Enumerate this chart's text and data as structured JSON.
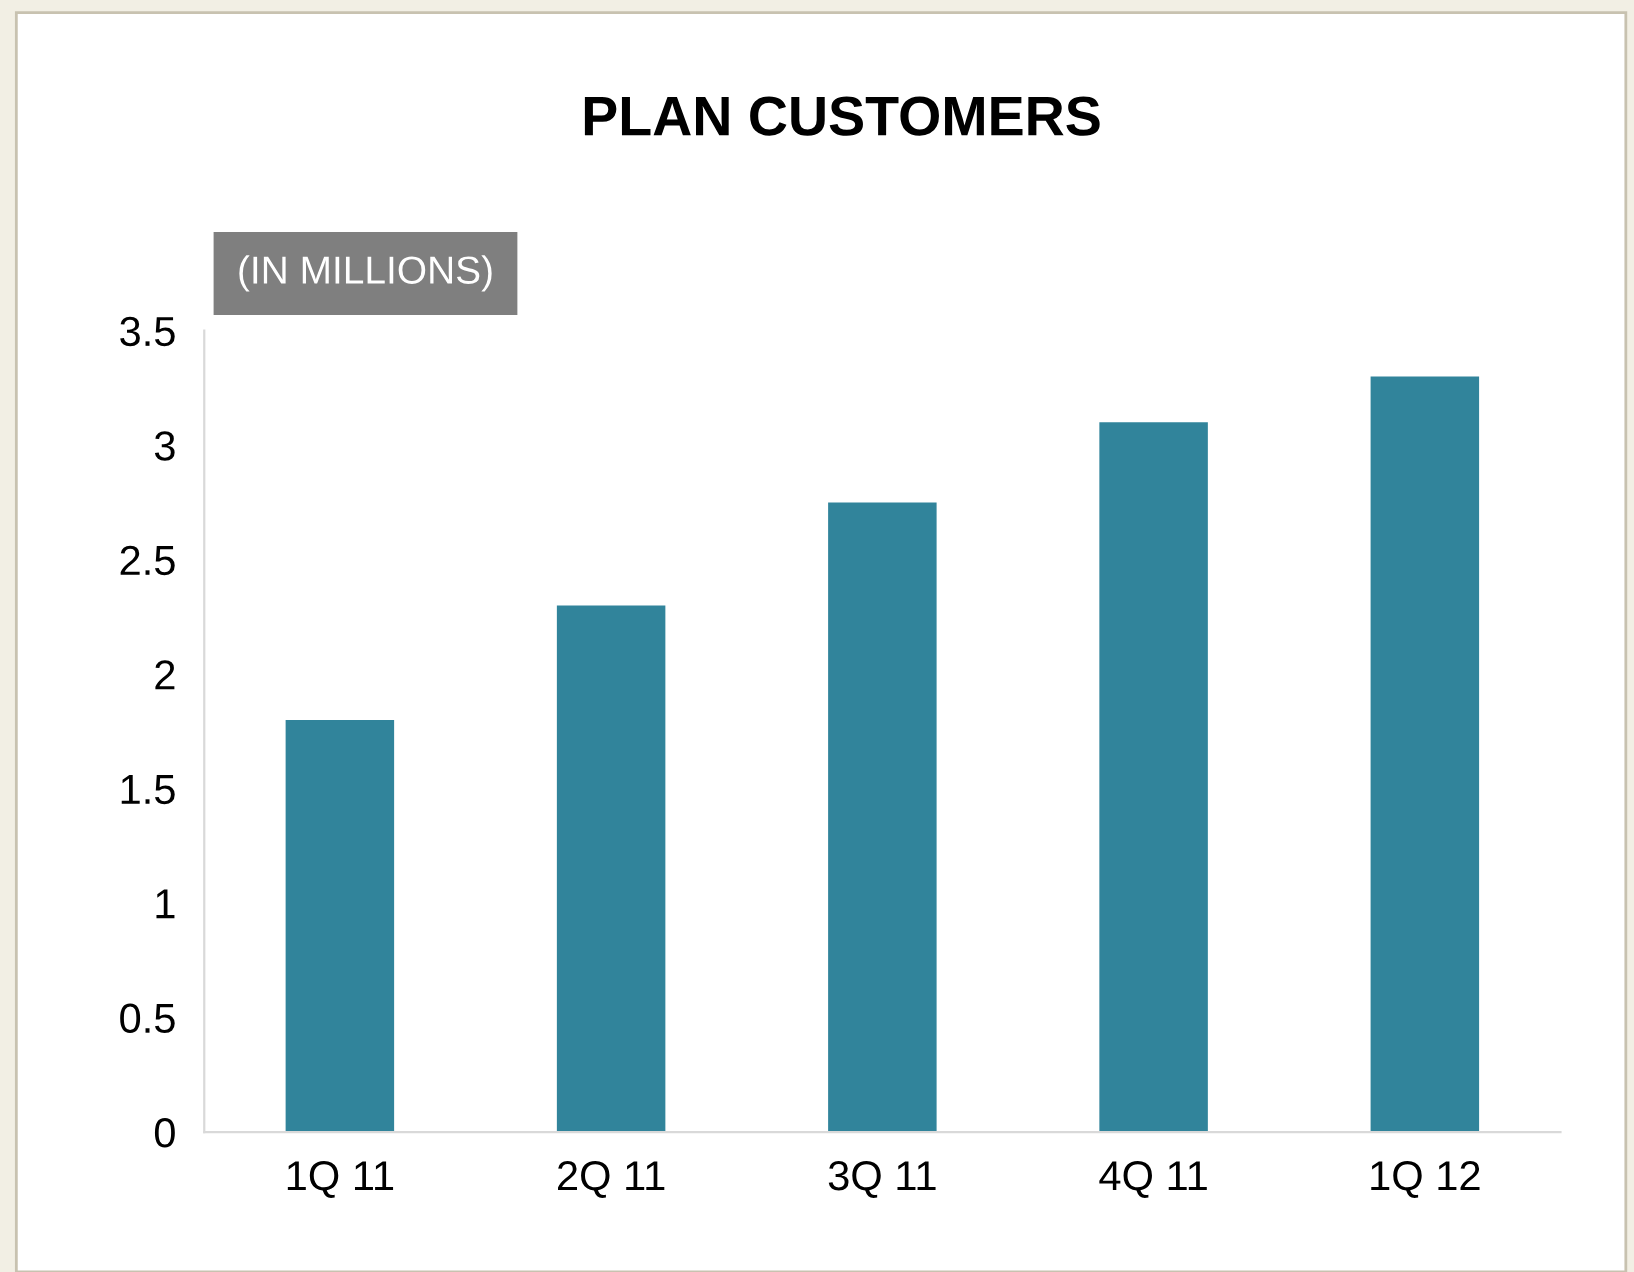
{
  "chart_data": {
    "type": "bar",
    "title": "PLAN CUSTOMERS",
    "categories": [
      "1Q 11",
      "2Q 11",
      "3Q 11",
      "4Q 11",
      "1Q 12"
    ],
    "values": [
      1.8,
      2.3,
      2.75,
      3.1,
      3.3
    ],
    "color": "#31849b",
    "ylim": [
      0,
      3.5
    ],
    "yticks": [
      0,
      0.5,
      1,
      1.5,
      2,
      2.5,
      3,
      3.5
    ],
    "grid": false,
    "annotations": [
      "(IN MILLIONS)"
    ]
  }
}
